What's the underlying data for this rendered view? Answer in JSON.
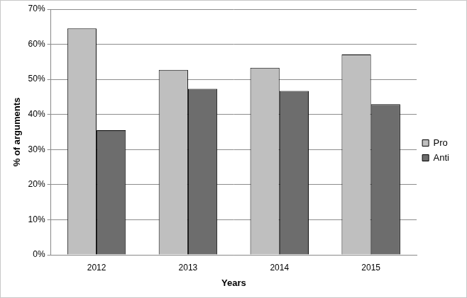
{
  "chart_data": {
    "type": "bar",
    "x_label": "Years",
    "y_label": "% of arguments",
    "categories": [
      "2012",
      "2013",
      "2014",
      "2015"
    ],
    "series": [
      {
        "name": "Pro",
        "color": "#bfbfbf",
        "values": [
          64.5,
          52.7,
          53.3,
          57.1
        ]
      },
      {
        "name": "Anti",
        "color": "#6d6d6d",
        "values": [
          35.5,
          47.3,
          46.7,
          42.9
        ]
      }
    ],
    "ylim": [
      0,
      70
    ],
    "yticks": [
      {
        "value": 0,
        "label": "0%"
      },
      {
        "value": 10,
        "label": "10%"
      },
      {
        "value": 20,
        "label": "20%"
      },
      {
        "value": 30,
        "label": "30%"
      },
      {
        "value": 40,
        "label": "40%"
      },
      {
        "value": 50,
        "label": "50%"
      },
      {
        "value": 60,
        "label": "60%"
      },
      {
        "value": 70,
        "label": "70%"
      }
    ],
    "grid": true,
    "legend": "right"
  }
}
